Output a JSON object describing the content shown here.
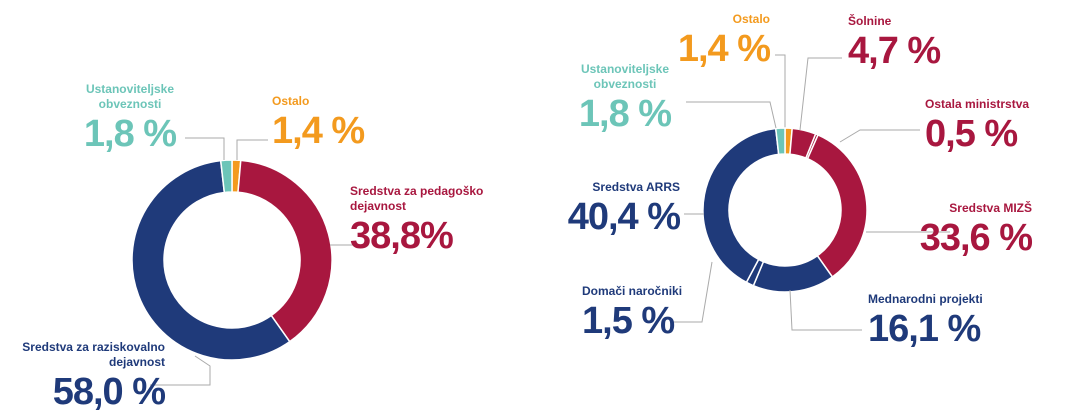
{
  "chart_data": [
    {
      "type": "pie",
      "categories": [
        "Ostalo",
        "Sredstva za pedagoško dejavnost",
        "Sredstva za raziskovalno dejavnost",
        "Ustanoviteljske obveznosti"
      ],
      "values": [
        1.4,
        38.8,
        58.0,
        1.8
      ],
      "value_labels": [
        "1,4 %",
        "38,8%",
        "58,0 %",
        "1,8 %"
      ],
      "colors": [
        "#f39a1e",
        "#a8173f",
        "#1f3a7a",
        "#6cc5b8"
      ]
    },
    {
      "type": "pie",
      "categories": [
        "Ostalo",
        "Šolnine",
        "Ostala ministrstva",
        "Sredstva MIZŠ",
        "Mednarodni projekti",
        "Domači naročniki",
        "Sredstva ARRS",
        "Ustanoviteljske obveznosti"
      ],
      "values": [
        1.4,
        4.7,
        0.5,
        33.6,
        16.1,
        1.5,
        40.4,
        1.8
      ],
      "value_labels": [
        "1,4 %",
        "4,7 %",
        "0,5 %",
        "33,6 %",
        "16,1 %",
        "1,5 %",
        "40,4 %",
        "1,8 %"
      ],
      "colors": [
        "#f39a1e",
        "#a8173f",
        "#a8173f",
        "#a8173f",
        "#1f3a7a",
        "#1f3a7a",
        "#1f3a7a",
        "#6cc5b8"
      ]
    }
  ]
}
